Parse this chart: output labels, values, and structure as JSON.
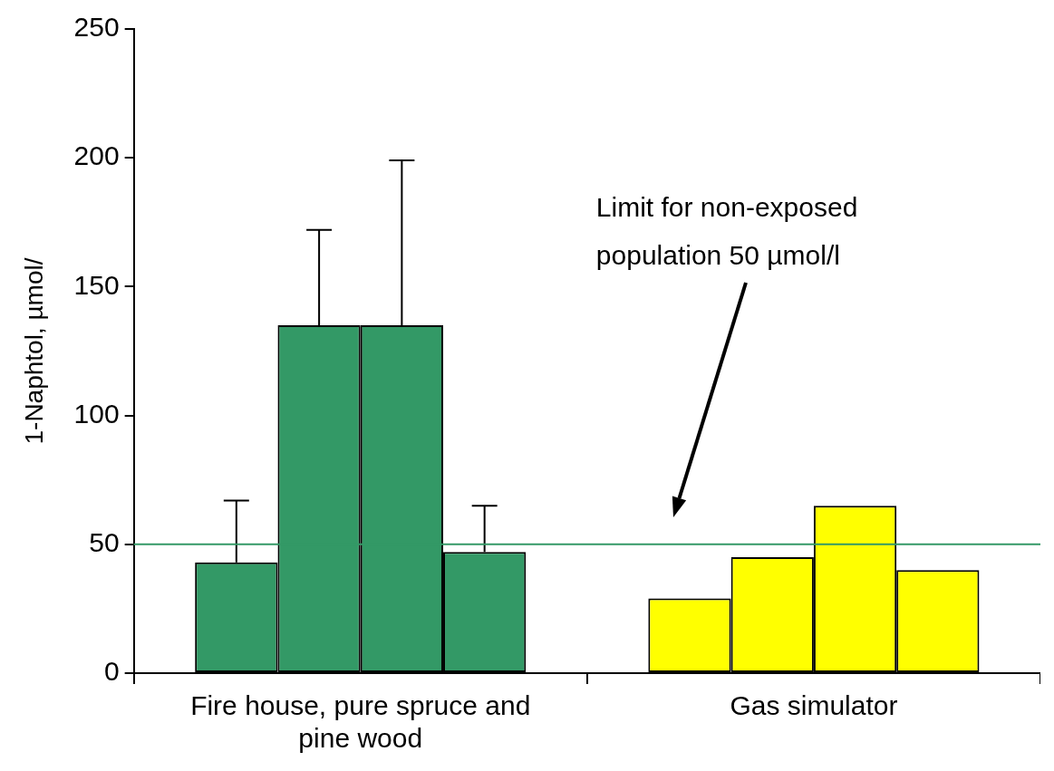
{
  "chart_data": {
    "type": "bar",
    "ylabel": "1-Naphtol, µmol/",
    "categories": [
      "Fire house, pure spruce and pine wood",
      "Gas simulator"
    ],
    "series": [
      {
        "colors": [
          "#339966",
          "#ffff00"
        ],
        "values": [
          43,
          29
        ],
        "errors": [
          [
            43,
            67
          ],
          null
        ]
      },
      {
        "colors": [
          "#339966",
          "#ffff00"
        ],
        "values": [
          135,
          45
        ],
        "errors": [
          [
            135,
            172
          ],
          null
        ]
      },
      {
        "colors": [
          "#339966",
          "#ffff00"
        ],
        "values": [
          135,
          65
        ],
        "errors": [
          [
            135,
            199
          ],
          null
        ]
      },
      {
        "colors": [
          "#339966",
          "#ffff00"
        ],
        "values": [
          47,
          40
        ],
        "errors": [
          [
            47,
            65
          ],
          null
        ]
      }
    ],
    "ylim": [
      0,
      250
    ],
    "yticks": [
      0,
      50,
      100,
      150,
      200,
      250
    ],
    "grid": false,
    "legend": false,
    "annotations": [
      "Limit for non-exposed population 50 µmol/l"
    ],
    "ref_lines": [
      {
        "axis": "y",
        "value": 50,
        "color": "#339966"
      }
    ]
  }
}
